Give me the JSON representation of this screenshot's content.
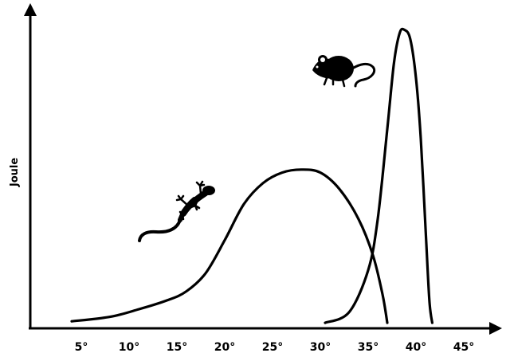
{
  "chart_data": {
    "type": "line",
    "title": "",
    "xlabel": "",
    "ylabel": "Joule",
    "x_ticks": [
      "5°",
      "10°",
      "15°",
      "20°",
      "25°",
      "30°",
      "35°",
      "40°",
      "45°"
    ],
    "x_tick_values": [
      5,
      10,
      15,
      20,
      25,
      30,
      35,
      40,
      45
    ],
    "xlim": [
      2,
      48
    ],
    "ylim": [
      0,
      100
    ],
    "grid": false,
    "series": [
      {
        "icon": "lizard-icon",
        "color": "#000000",
        "points": [
          [
            4,
            1
          ],
          [
            8,
            2.5
          ],
          [
            11,
            5
          ],
          [
            14,
            8
          ],
          [
            16,
            11
          ],
          [
            18,
            17
          ],
          [
            20,
            28
          ],
          [
            22,
            40
          ],
          [
            24,
            47
          ],
          [
            26,
            50.5
          ],
          [
            28,
            51.5
          ],
          [
            30,
            50.5
          ],
          [
            32,
            45
          ],
          [
            34,
            35
          ],
          [
            35.5,
            23
          ],
          [
            36.5,
            10
          ],
          [
            37,
            0.5
          ]
        ]
      },
      {
        "icon": "rat-icon",
        "color": "#000000",
        "points": [
          [
            30.5,
            0.5
          ],
          [
            33,
            4
          ],
          [
            35,
            18
          ],
          [
            36,
            35
          ],
          [
            37,
            65
          ],
          [
            37.7,
            87
          ],
          [
            38.3,
            97
          ],
          [
            38.8,
            98
          ],
          [
            39.4,
            95
          ],
          [
            40,
            82
          ],
          [
            40.5,
            62
          ],
          [
            41,
            32
          ],
          [
            41.4,
            8
          ],
          [
            41.7,
            0.5
          ]
        ]
      }
    ]
  }
}
